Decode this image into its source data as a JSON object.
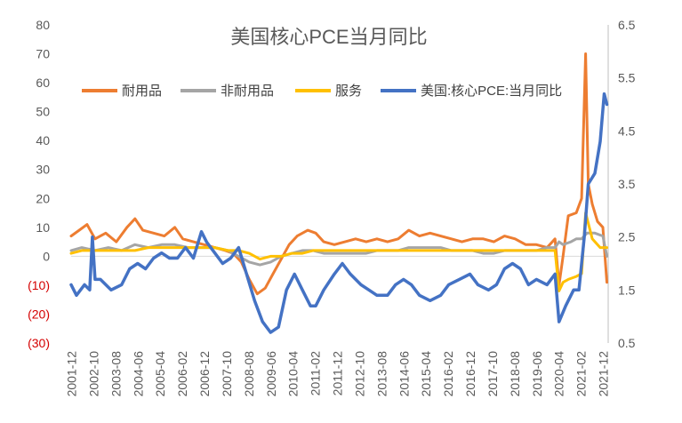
{
  "chart_data": {
    "type": "line",
    "title": "美国核心PCE当月同比",
    "legend_position": "top",
    "grid": false,
    "x_ticks": [
      "2001-12",
      "2002-10",
      "2003-08",
      "2004-06",
      "2005-04",
      "2006-02",
      "2006-12",
      "2007-10",
      "2008-08",
      "2009-06",
      "2010-04",
      "2011-02",
      "2011-12",
      "2012-10",
      "2013-08",
      "2014-06",
      "2015-04",
      "2016-02",
      "2016-12",
      "2017-10",
      "2018-08",
      "2019-06",
      "2020-04",
      "2021-02",
      "2021-12"
    ],
    "y_left": {
      "range": [
        -30,
        80
      ],
      "tick_values": [
        80,
        70,
        60,
        50,
        40,
        30,
        20,
        10,
        0,
        -10,
        -20,
        -30
      ],
      "tick_labels": [
        "80",
        "70",
        "60",
        "50",
        "40",
        "30",
        "20",
        "10",
        "0",
        "(10)",
        "(20)",
        "(30)"
      ]
    },
    "y_right": {
      "range": [
        0.5,
        6.5
      ],
      "tick_values": [
        6.5,
        5.5,
        4.5,
        3.5,
        2.5,
        1.5,
        0.5
      ],
      "tick_labels": [
        "6.5",
        "5.5",
        "4.5",
        "3.5",
        "2.5",
        "1.5",
        "0.5"
      ]
    },
    "series": [
      {
        "name": "耐用品",
        "color": "#ed7d31",
        "axis": "left",
        "width": 3,
        "points": [
          [
            2001.9,
            7
          ],
          [
            2002.2,
            9
          ],
          [
            2002.5,
            11
          ],
          [
            2002.8,
            6
          ],
          [
            2003.2,
            8
          ],
          [
            2003.6,
            5
          ],
          [
            2004.0,
            10
          ],
          [
            2004.3,
            13
          ],
          [
            2004.6,
            9
          ],
          [
            2005.0,
            8
          ],
          [
            2005.4,
            7
          ],
          [
            2005.8,
            10
          ],
          [
            2006.1,
            6
          ],
          [
            2006.5,
            5
          ],
          [
            2006.9,
            4
          ],
          [
            2007.3,
            3
          ],
          [
            2007.7,
            2
          ],
          [
            2008.0,
            1
          ],
          [
            2008.3,
            -2
          ],
          [
            2008.6,
            -8
          ],
          [
            2008.9,
            -13
          ],
          [
            2009.2,
            -11
          ],
          [
            2009.5,
            -6
          ],
          [
            2009.8,
            -1
          ],
          [
            2010.1,
            4
          ],
          [
            2010.4,
            7
          ],
          [
            2010.8,
            9
          ],
          [
            2011.1,
            8
          ],
          [
            2011.4,
            5
          ],
          [
            2011.8,
            4
          ],
          [
            2012.2,
            5
          ],
          [
            2012.6,
            6
          ],
          [
            2013.0,
            5
          ],
          [
            2013.4,
            6
          ],
          [
            2013.8,
            5
          ],
          [
            2014.2,
            6
          ],
          [
            2014.6,
            9
          ],
          [
            2015.0,
            7
          ],
          [
            2015.4,
            8
          ],
          [
            2015.8,
            7
          ],
          [
            2016.2,
            6
          ],
          [
            2016.6,
            5
          ],
          [
            2017.0,
            6
          ],
          [
            2017.4,
            6
          ],
          [
            2017.8,
            5
          ],
          [
            2018.2,
            7
          ],
          [
            2018.6,
            6
          ],
          [
            2019.0,
            4
          ],
          [
            2019.4,
            4
          ],
          [
            2019.8,
            3
          ],
          [
            2020.1,
            6
          ],
          [
            2020.25,
            -10
          ],
          [
            2020.4,
            0
          ],
          [
            2020.6,
            14
          ],
          [
            2020.9,
            15
          ],
          [
            2021.1,
            20
          ],
          [
            2021.25,
            70
          ],
          [
            2021.35,
            25
          ],
          [
            2021.5,
            18
          ],
          [
            2021.7,
            12
          ],
          [
            2021.9,
            10
          ],
          [
            2022.05,
            -9
          ]
        ]
      },
      {
        "name": "非耐用品",
        "color": "#a5a5a5",
        "axis": "left",
        "width": 3,
        "points": [
          [
            2001.9,
            2
          ],
          [
            2002.3,
            3
          ],
          [
            2002.8,
            2
          ],
          [
            2003.3,
            3
          ],
          [
            2003.8,
            2
          ],
          [
            2004.3,
            4
          ],
          [
            2004.8,
            3
          ],
          [
            2005.3,
            4
          ],
          [
            2005.8,
            4
          ],
          [
            2006.3,
            3
          ],
          [
            2006.8,
            3
          ],
          [
            2007.3,
            3
          ],
          [
            2007.8,
            2
          ],
          [
            2008.2,
            0
          ],
          [
            2008.6,
            -2
          ],
          [
            2009.0,
            -3
          ],
          [
            2009.4,
            -2
          ],
          [
            2009.8,
            0
          ],
          [
            2010.2,
            1
          ],
          [
            2010.6,
            2
          ],
          [
            2011.0,
            2
          ],
          [
            2011.4,
            1
          ],
          [
            2011.8,
            1
          ],
          [
            2012.2,
            1
          ],
          [
            2012.6,
            1
          ],
          [
            2013.0,
            1
          ],
          [
            2013.4,
            2
          ],
          [
            2013.8,
            2
          ],
          [
            2014.2,
            2
          ],
          [
            2014.6,
            3
          ],
          [
            2015.0,
            3
          ],
          [
            2015.4,
            3
          ],
          [
            2015.8,
            3
          ],
          [
            2016.2,
            2
          ],
          [
            2016.6,
            2
          ],
          [
            2017.0,
            2
          ],
          [
            2017.4,
            1
          ],
          [
            2017.8,
            1
          ],
          [
            2018.2,
            2
          ],
          [
            2018.6,
            2
          ],
          [
            2019.0,
            2
          ],
          [
            2019.4,
            2
          ],
          [
            2019.8,
            3
          ],
          [
            2020.1,
            3
          ],
          [
            2020.25,
            5
          ],
          [
            2020.4,
            4
          ],
          [
            2020.7,
            5
          ],
          [
            2020.9,
            6
          ],
          [
            2021.1,
            6
          ],
          [
            2021.3,
            8
          ],
          [
            2021.6,
            8
          ],
          [
            2021.9,
            7
          ],
          [
            2022.05,
            0
          ]
        ]
      },
      {
        "name": "服务",
        "color": "#ffc000",
        "axis": "left",
        "width": 3,
        "points": [
          [
            2001.9,
            1
          ],
          [
            2002.3,
            2
          ],
          [
            2002.8,
            2
          ],
          [
            2003.3,
            2
          ],
          [
            2003.8,
            2
          ],
          [
            2004.3,
            2
          ],
          [
            2004.8,
            3
          ],
          [
            2005.3,
            3
          ],
          [
            2005.8,
            3
          ],
          [
            2006.3,
            3
          ],
          [
            2006.8,
            3
          ],
          [
            2007.3,
            3
          ],
          [
            2007.8,
            2
          ],
          [
            2008.2,
            2
          ],
          [
            2008.6,
            1
          ],
          [
            2009.0,
            -1
          ],
          [
            2009.4,
            0
          ],
          [
            2009.8,
            0
          ],
          [
            2010.2,
            1
          ],
          [
            2010.6,
            1
          ],
          [
            2011.0,
            2
          ],
          [
            2011.4,
            2
          ],
          [
            2011.8,
            2
          ],
          [
            2012.2,
            2
          ],
          [
            2012.6,
            2
          ],
          [
            2013.0,
            2
          ],
          [
            2013.4,
            2
          ],
          [
            2013.8,
            2
          ],
          [
            2014.2,
            2
          ],
          [
            2014.6,
            2
          ],
          [
            2015.0,
            2
          ],
          [
            2015.4,
            2
          ],
          [
            2015.8,
            2
          ],
          [
            2016.2,
            2
          ],
          [
            2016.6,
            2
          ],
          [
            2017.0,
            2
          ],
          [
            2017.4,
            2
          ],
          [
            2017.8,
            2
          ],
          [
            2018.2,
            2
          ],
          [
            2018.6,
            2
          ],
          [
            2019.0,
            2
          ],
          [
            2019.4,
            2
          ],
          [
            2019.8,
            2
          ],
          [
            2020.1,
            2
          ],
          [
            2020.25,
            -12
          ],
          [
            2020.4,
            -9
          ],
          [
            2020.6,
            -8
          ],
          [
            2020.9,
            -7
          ],
          [
            2021.1,
            -6
          ],
          [
            2021.25,
            15
          ],
          [
            2021.5,
            6
          ],
          [
            2021.8,
            3
          ],
          [
            2022.05,
            3
          ]
        ]
      },
      {
        "name": "美国:核心PCE:当月同比",
        "color": "#4472c4",
        "axis": "right",
        "width": 3.5,
        "points": [
          [
            2001.9,
            1.6
          ],
          [
            2002.1,
            1.4
          ],
          [
            2002.4,
            1.6
          ],
          [
            2002.6,
            1.5
          ],
          [
            2002.7,
            2.5
          ],
          [
            2002.8,
            1.7
          ],
          [
            2003.0,
            1.7
          ],
          [
            2003.4,
            1.5
          ],
          [
            2003.8,
            1.6
          ],
          [
            2004.1,
            1.9
          ],
          [
            2004.4,
            2.0
          ],
          [
            2004.7,
            1.9
          ],
          [
            2005.0,
            2.1
          ],
          [
            2005.3,
            2.2
          ],
          [
            2005.6,
            2.1
          ],
          [
            2005.9,
            2.1
          ],
          [
            2006.2,
            2.3
          ],
          [
            2006.5,
            2.1
          ],
          [
            2006.8,
            2.6
          ],
          [
            2007.0,
            2.4
          ],
          [
            2007.3,
            2.2
          ],
          [
            2007.6,
            2.0
          ],
          [
            2007.9,
            2.1
          ],
          [
            2008.2,
            2.3
          ],
          [
            2008.5,
            1.8
          ],
          [
            2008.8,
            1.3
          ],
          [
            2009.1,
            0.9
          ],
          [
            2009.4,
            0.7
          ],
          [
            2009.7,
            0.8
          ],
          [
            2010.0,
            1.5
          ],
          [
            2010.3,
            1.8
          ],
          [
            2010.6,
            1.5
          ],
          [
            2010.9,
            1.2
          ],
          [
            2011.1,
            1.2
          ],
          [
            2011.4,
            1.5
          ],
          [
            2011.8,
            1.8
          ],
          [
            2012.1,
            2.0
          ],
          [
            2012.4,
            1.8
          ],
          [
            2012.8,
            1.6
          ],
          [
            2013.1,
            1.5
          ],
          [
            2013.4,
            1.4
          ],
          [
            2013.8,
            1.4
          ],
          [
            2014.1,
            1.6
          ],
          [
            2014.4,
            1.7
          ],
          [
            2014.7,
            1.6
          ],
          [
            2015.0,
            1.4
          ],
          [
            2015.4,
            1.3
          ],
          [
            2015.8,
            1.4
          ],
          [
            2016.1,
            1.6
          ],
          [
            2016.5,
            1.7
          ],
          [
            2016.9,
            1.8
          ],
          [
            2017.2,
            1.6
          ],
          [
            2017.6,
            1.5
          ],
          [
            2017.9,
            1.6
          ],
          [
            2018.2,
            1.9
          ],
          [
            2018.5,
            2.0
          ],
          [
            2018.8,
            1.9
          ],
          [
            2019.1,
            1.6
          ],
          [
            2019.4,
            1.7
          ],
          [
            2019.8,
            1.6
          ],
          [
            2020.1,
            1.8
          ],
          [
            2020.25,
            0.9
          ],
          [
            2020.5,
            1.2
          ],
          [
            2020.8,
            1.5
          ],
          [
            2021.0,
            1.5
          ],
          [
            2021.2,
            2.5
          ],
          [
            2021.35,
            3.5
          ],
          [
            2021.6,
            3.7
          ],
          [
            2021.8,
            4.3
          ],
          [
            2021.95,
            5.2
          ],
          [
            2022.05,
            5.0
          ]
        ]
      }
    ]
  }
}
